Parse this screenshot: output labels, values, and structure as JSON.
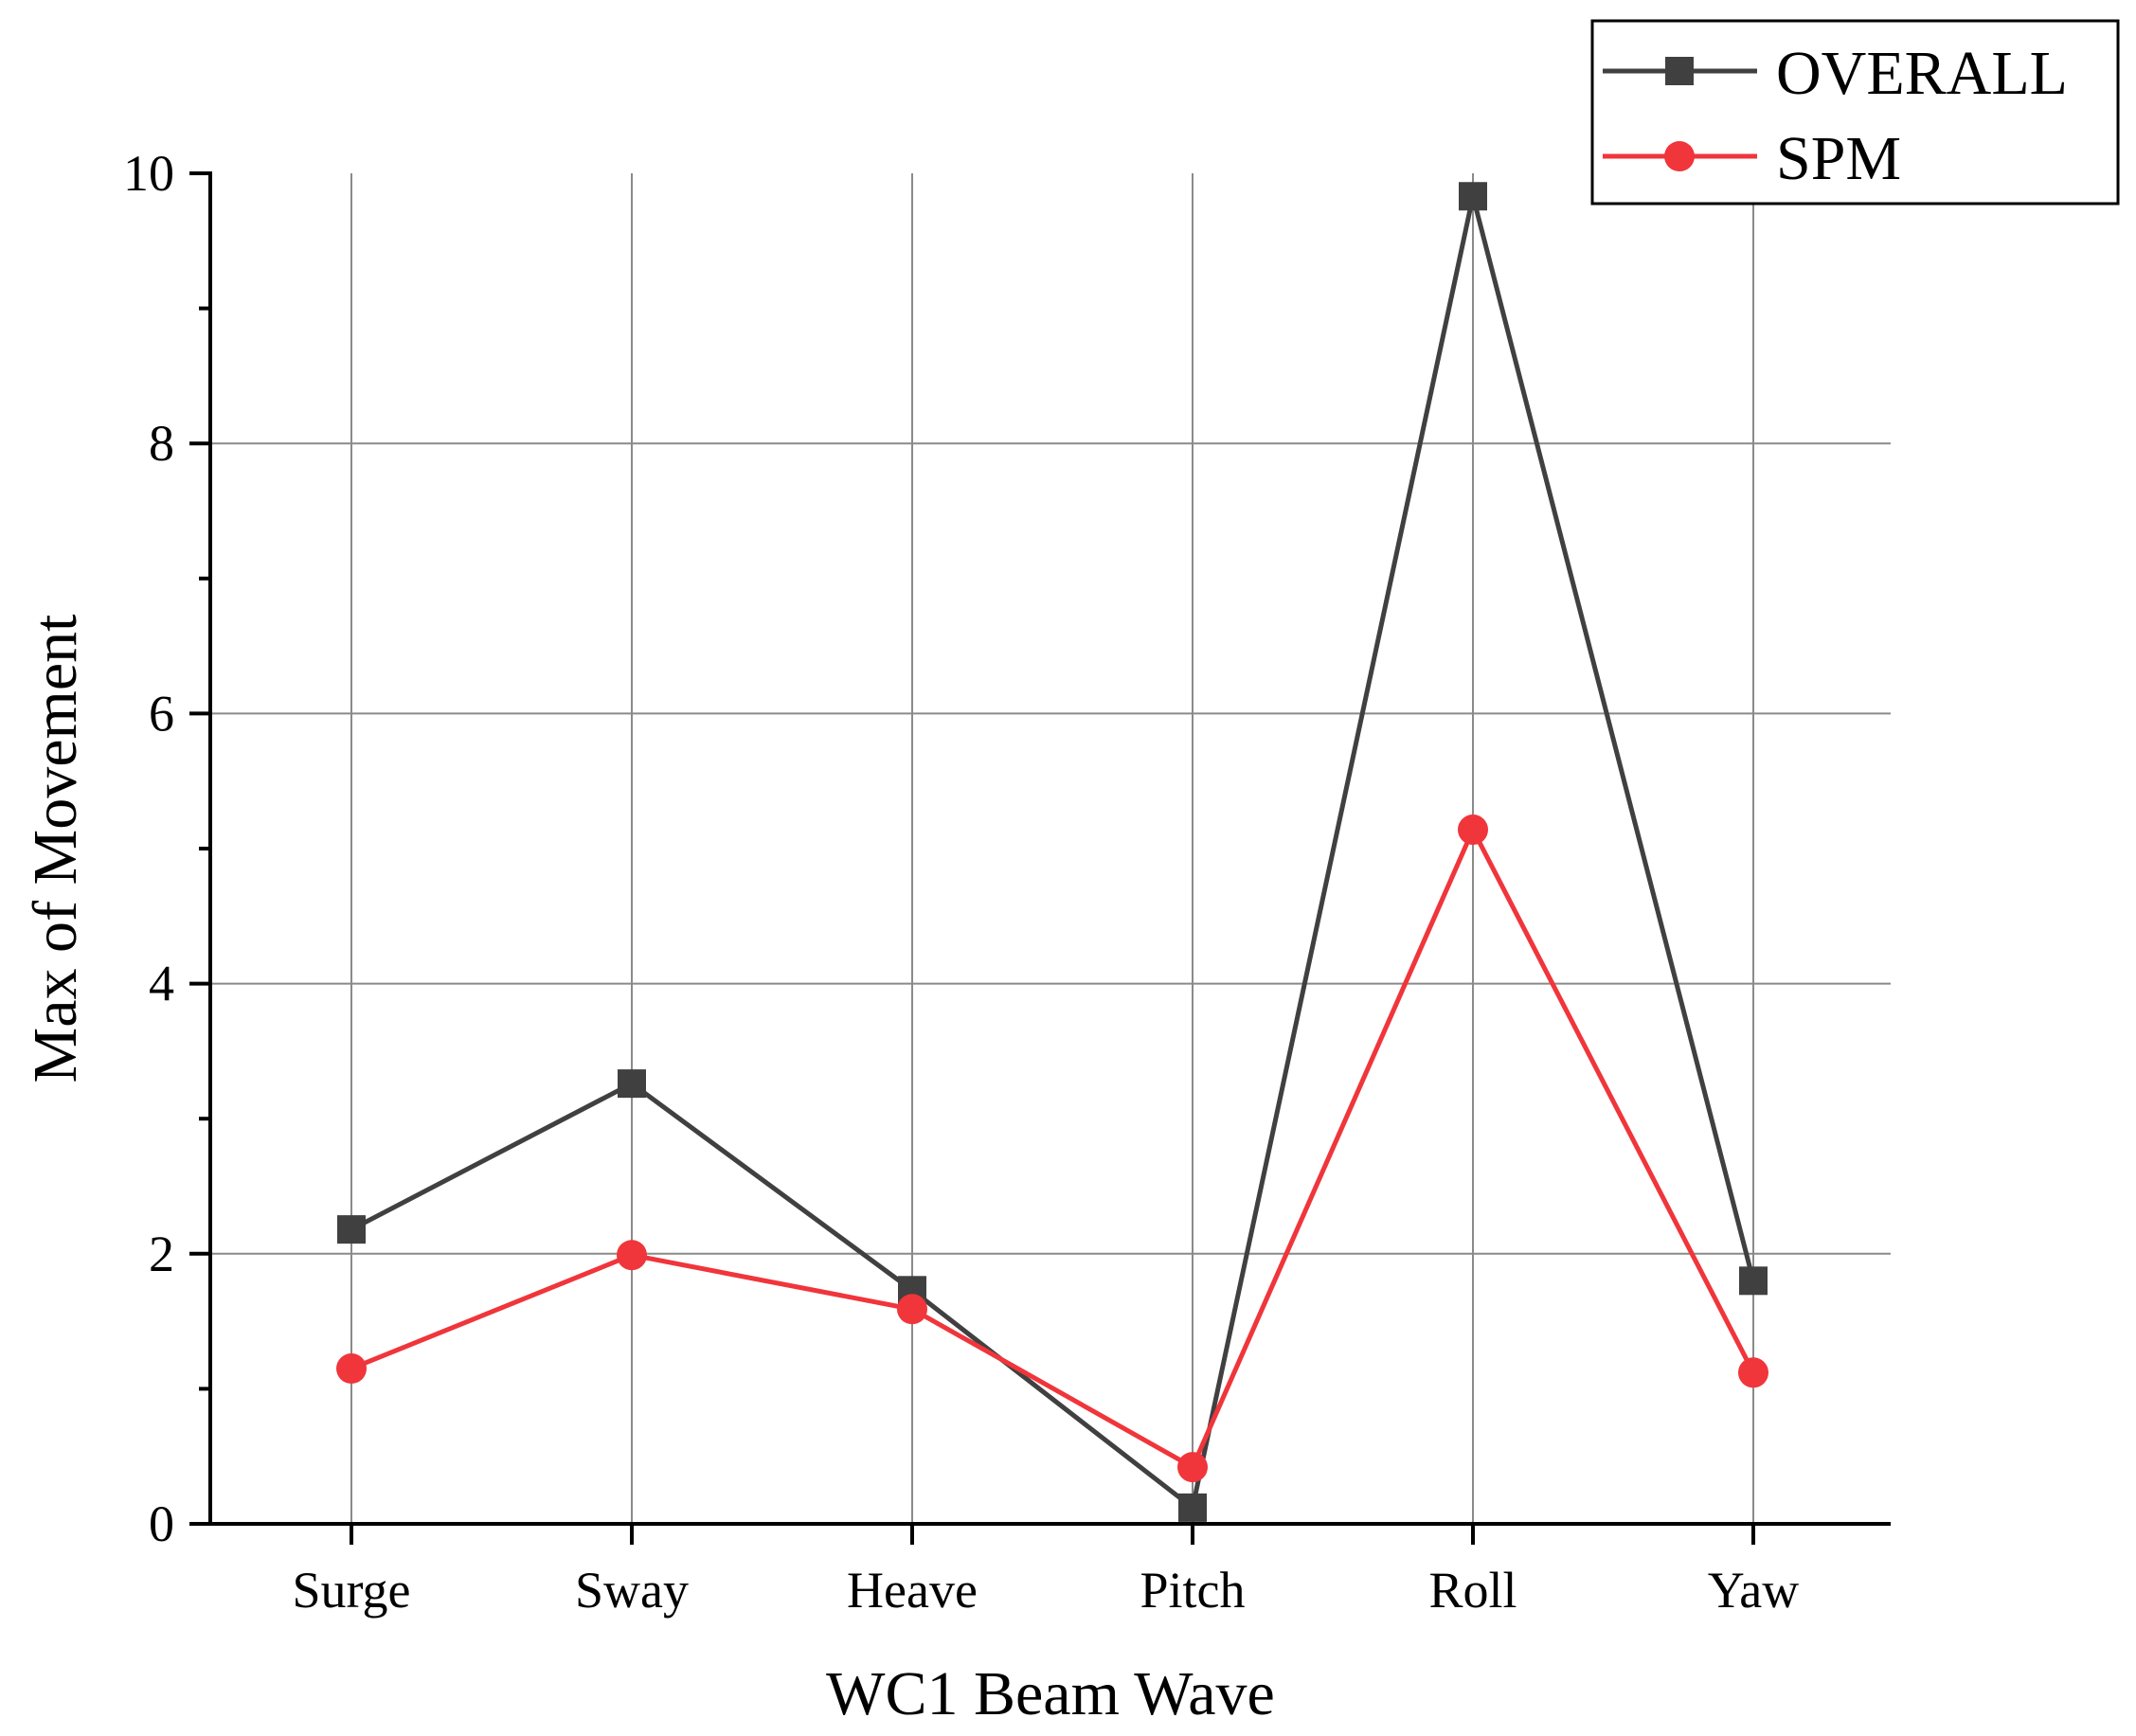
{
  "chart_data": {
    "type": "line",
    "title": "",
    "xlabel": "WC1 Beam Wave",
    "ylabel": "Max of Movement",
    "categories": [
      "Surge",
      "Sway",
      "Heave",
      "Pitch",
      "Roll",
      "Yaw"
    ],
    "ylim": [
      0,
      10
    ],
    "yticks": [
      0,
      2,
      4,
      6,
      8,
      10
    ],
    "grid": true,
    "legend_position": "top-right",
    "series": [
      {
        "name": "OVERALL",
        "color": "#404040",
        "marker": "square",
        "values": [
          2.18,
          3.26,
          1.73,
          0.12,
          9.83,
          1.8
        ]
      },
      {
        "name": "SPM",
        "color": "#f0353b",
        "marker": "circle",
        "values": [
          1.15,
          1.99,
          1.59,
          0.42,
          5.14,
          1.12
        ]
      }
    ]
  }
}
